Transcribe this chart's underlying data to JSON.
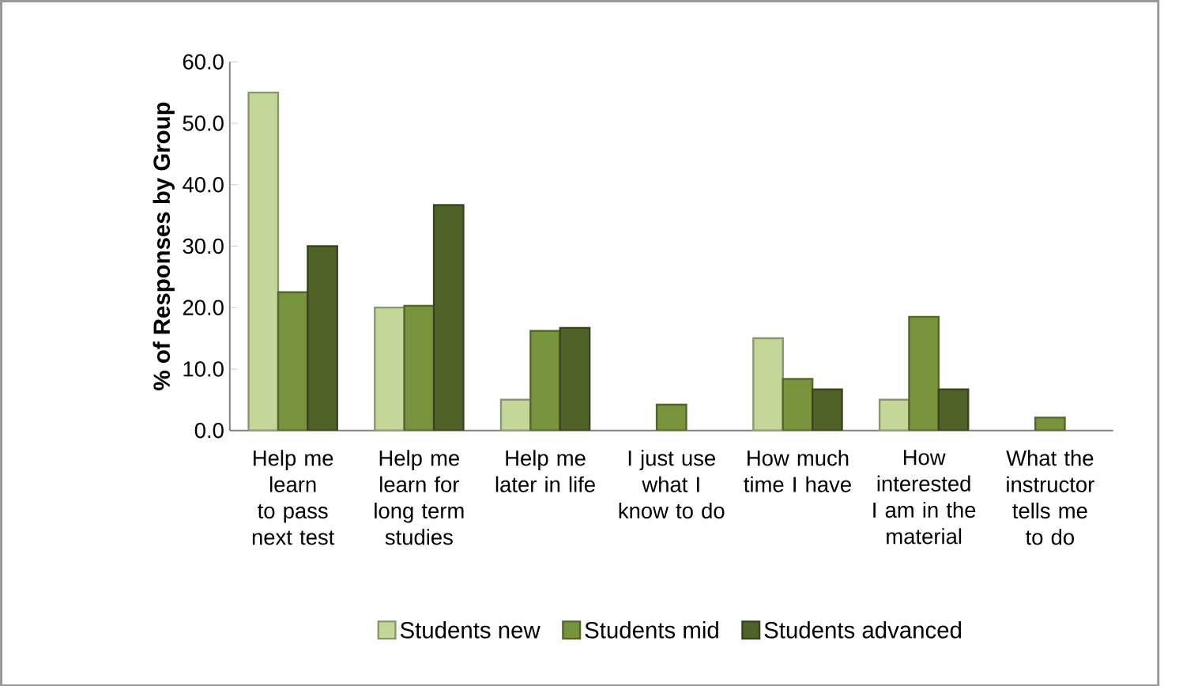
{
  "chart_data": {
    "type": "bar",
    "ylabel": "% of Responses by Group",
    "categories": [
      "Help me learn to pass next test",
      "Help me learn for long term studies",
      "Help me later in life",
      "I just use what I know to do",
      "How much time I have",
      "How interested I am in the material",
      "What the instructor tells me to do"
    ],
    "series": [
      {
        "name": "Students new",
        "color": "#c4d79b",
        "values": [
          55.0,
          20.0,
          5.0,
          null,
          15.0,
          5.0,
          null
        ]
      },
      {
        "name": "Students mid",
        "color": "#77933c",
        "values": [
          22.5,
          20.3,
          16.2,
          4.2,
          8.4,
          18.5,
          2.1
        ]
      },
      {
        "name": "Students advanced",
        "color": "#4f6228",
        "values": [
          30.0,
          36.7,
          16.7,
          null,
          6.7,
          6.7,
          null
        ]
      }
    ],
    "ylim": [
      0,
      60
    ],
    "yticks": [
      {
        "value": 0,
        "label": "0.0"
      },
      {
        "value": 10,
        "label": "10.0"
      },
      {
        "value": 20,
        "label": "20.0"
      },
      {
        "value": 30,
        "label": "30.0"
      },
      {
        "value": 40,
        "label": "40.0"
      },
      {
        "value": 50,
        "label": "50.0"
      },
      {
        "value": 60,
        "label": "60.0"
      }
    ],
    "grid": false,
    "legend": "bottom"
  }
}
